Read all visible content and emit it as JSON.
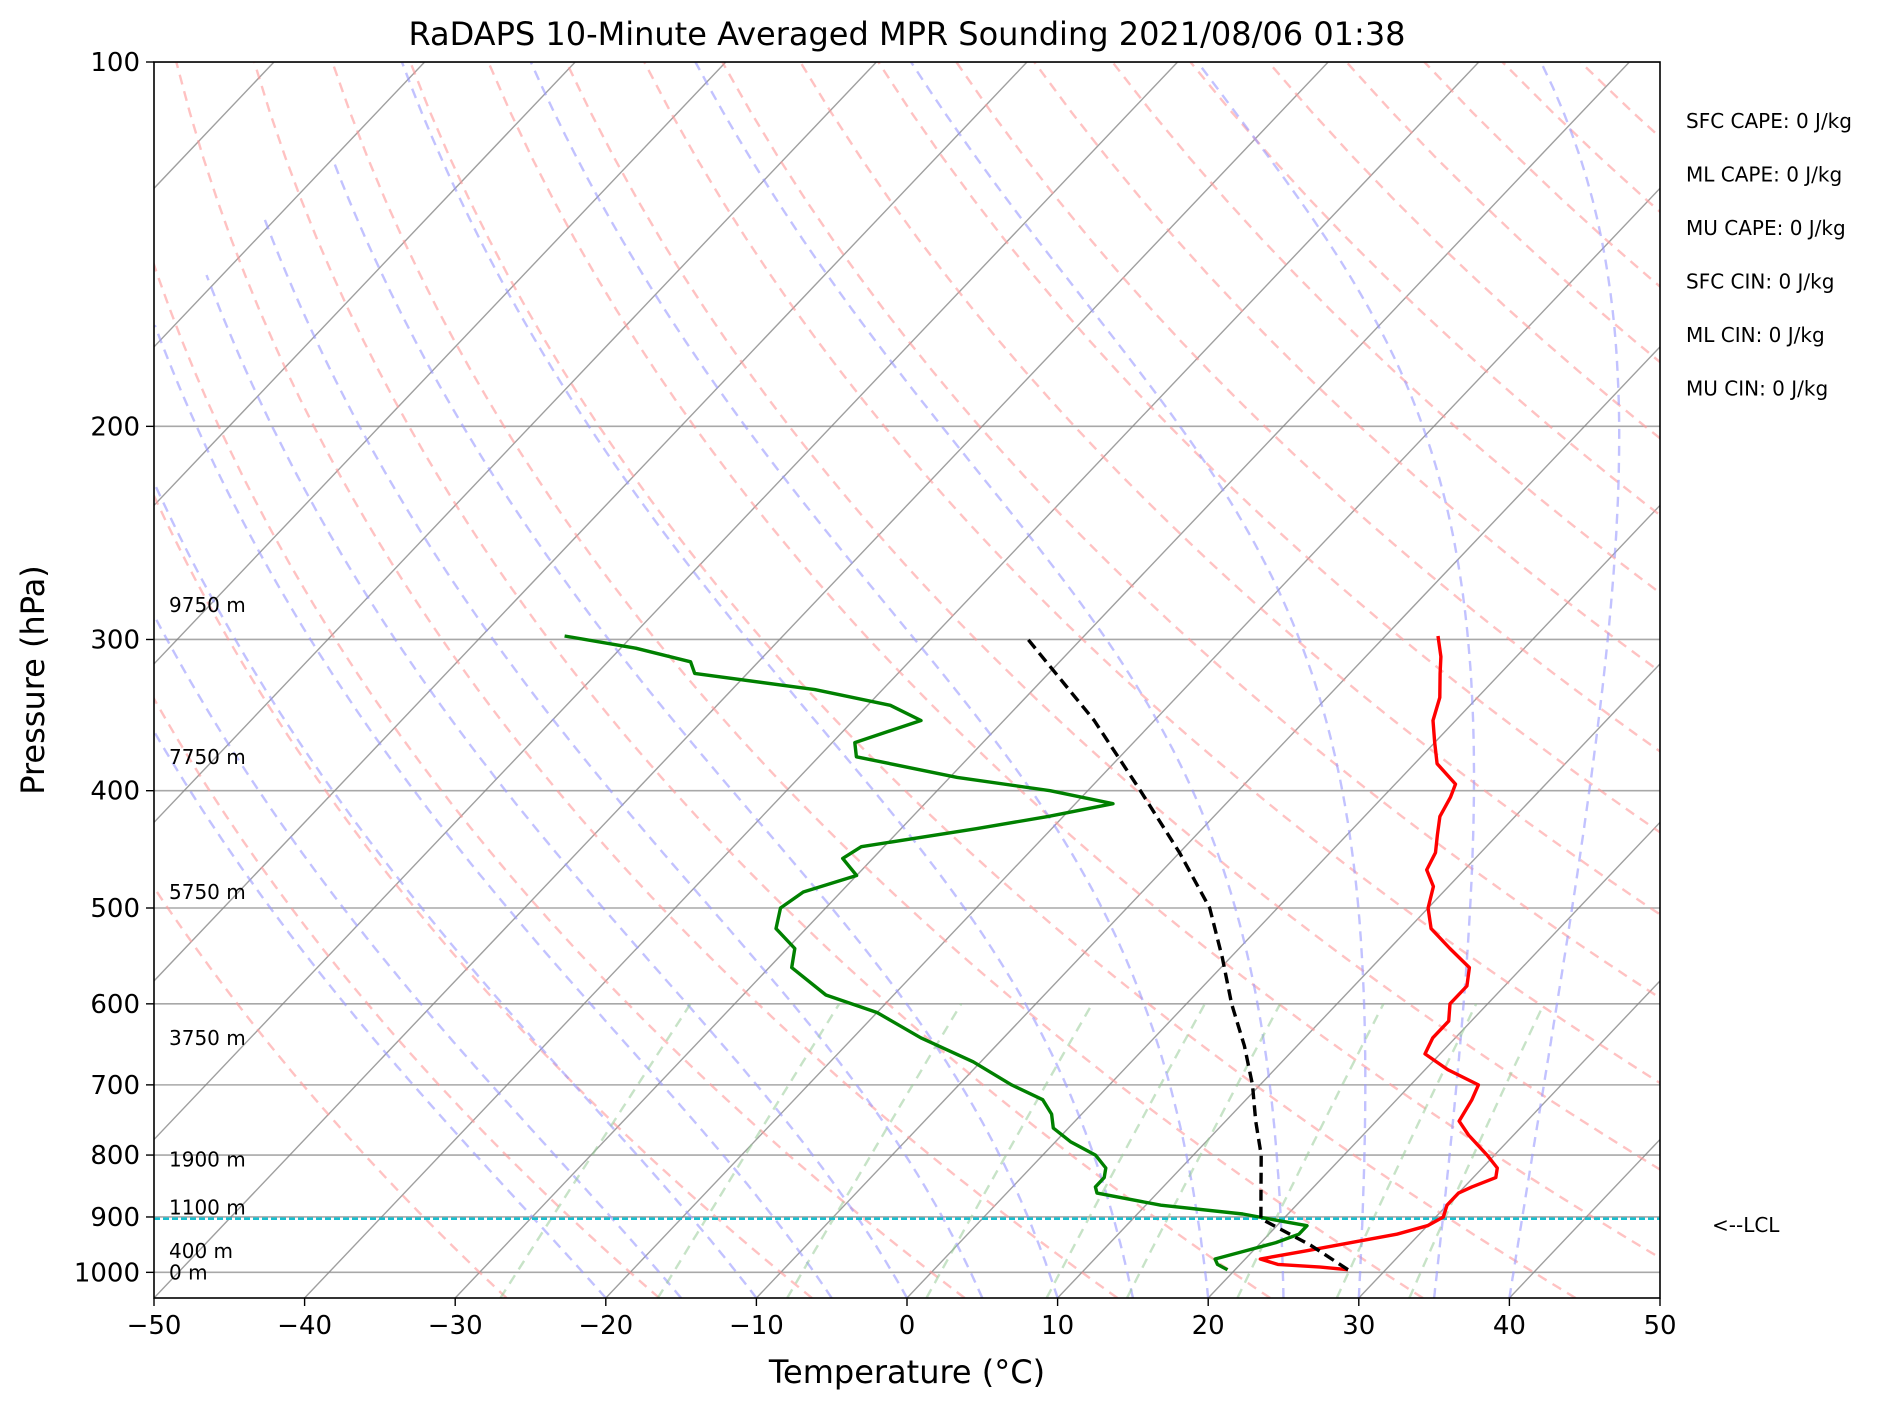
{
  "chart_data": {
    "type": "line",
    "subtype": "skew-t log-p sounding",
    "title": "RaDAPS 10-Minute Averaged MPR Sounding 2021/08/06 01:38",
    "xlabel": "Temperature (°C)",
    "ylabel": "Pressure (hPa)",
    "xlim": [
      -50,
      50
    ],
    "ylim": [
      1050,
      100
    ],
    "y_scale": "log",
    "grid": true,
    "x_ticks": [
      "−50",
      "−40",
      "−30",
      "−20",
      "−10",
      "0",
      "10",
      "20",
      "30",
      "40",
      "50"
    ],
    "y_ticks": [
      "100",
      "200",
      "300",
      "400",
      "500",
      "600",
      "700",
      "800",
      "900",
      "1000"
    ],
    "y_tick_values": [
      100,
      200,
      300,
      400,
      500,
      600,
      700,
      800,
      900,
      1000
    ],
    "colors": {
      "temperature": "#ff0000",
      "dewpoint": "#008000",
      "parcel": "#000000",
      "lcl": "#17becf",
      "dry_adiabats": "#ff9999",
      "moist_adiabats": "#9999ff",
      "mixing_ratio": "#99cc99",
      "isotherms": "#808080"
    },
    "series": [
      {
        "role": "temperature",
        "points": [
          {
            "p": 995,
            "t": 27.5
          },
          {
            "p": 990,
            "t": 25.5
          },
          {
            "p": 985,
            "t": 22.5
          },
          {
            "p": 975,
            "t": 21.0
          },
          {
            "p": 960,
            "t": 23.5
          },
          {
            "p": 945,
            "t": 26.0
          },
          {
            "p": 930,
            "t": 28.5
          },
          {
            "p": 915,
            "t": 30.0
          },
          {
            "p": 900,
            "t": 30.5
          },
          {
            "p": 880,
            "t": 30.0
          },
          {
            "p": 860,
            "t": 30.0
          },
          {
            "p": 850,
            "t": 30.5
          },
          {
            "p": 835,
            "t": 31.5
          },
          {
            "p": 820,
            "t": 31.0
          },
          {
            "p": 800,
            "t": 29.5
          },
          {
            "p": 770,
            "t": 27.0
          },
          {
            "p": 750,
            "t": 25.5
          },
          {
            "p": 720,
            "t": 25.0
          },
          {
            "p": 700,
            "t": 24.5
          },
          {
            "p": 680,
            "t": 21.5
          },
          {
            "p": 660,
            "t": 19.0
          },
          {
            "p": 640,
            "t": 18.5
          },
          {
            "p": 620,
            "t": 18.5
          },
          {
            "p": 600,
            "t": 17.5
          },
          {
            "p": 580,
            "t": 17.5
          },
          {
            "p": 560,
            "t": 16.5
          },
          {
            "p": 540,
            "t": 14.0
          },
          {
            "p": 520,
            "t": 11.5
          },
          {
            "p": 500,
            "t": 10.0
          },
          {
            "p": 480,
            "t": 9.0
          },
          {
            "p": 465,
            "t": 7.5
          },
          {
            "p": 450,
            "t": 7.0
          },
          {
            "p": 435,
            "t": 6.0
          },
          {
            "p": 420,
            "t": 5.0
          },
          {
            "p": 405,
            "t": 4.5
          },
          {
            "p": 395,
            "t": 4.0
          },
          {
            "p": 380,
            "t": 1.5
          },
          {
            "p": 365,
            "t": 0.0
          },
          {
            "p": 350,
            "t": -1.5
          },
          {
            "p": 335,
            "t": -2.5
          },
          {
            "p": 320,
            "t": -4.0
          },
          {
            "p": 310,
            "t": -5.0
          },
          {
            "p": 298,
            "t": -6.5
          }
        ]
      },
      {
        "role": "dewpoint",
        "points": [
          {
            "p": 995,
            "t": 19.5
          },
          {
            "p": 990,
            "t": 19.0
          },
          {
            "p": 985,
            "t": 18.5
          },
          {
            "p": 975,
            "t": 18.0
          },
          {
            "p": 960,
            "t": 19.5
          },
          {
            "p": 945,
            "t": 21.0
          },
          {
            "p": 930,
            "t": 22.0
          },
          {
            "p": 915,
            "t": 22.0
          },
          {
            "p": 905,
            "t": 19.5
          },
          {
            "p": 895,
            "t": 17.0
          },
          {
            "p": 880,
            "t": 11.0
          },
          {
            "p": 860,
            "t": 6.0
          },
          {
            "p": 850,
            "t": 5.5
          },
          {
            "p": 835,
            "t": 5.5
          },
          {
            "p": 820,
            "t": 5.0
          },
          {
            "p": 800,
            "t": 3.5
          },
          {
            "p": 780,
            "t": 1.0
          },
          {
            "p": 760,
            "t": -1.0
          },
          {
            "p": 740,
            "t": -2.0
          },
          {
            "p": 720,
            "t": -3.5
          },
          {
            "p": 700,
            "t": -6.5
          },
          {
            "p": 670,
            "t": -10.5
          },
          {
            "p": 640,
            "t": -15.5
          },
          {
            "p": 610,
            "t": -20.0
          },
          {
            "p": 590,
            "t": -24.5
          },
          {
            "p": 560,
            "t": -28.5
          },
          {
            "p": 540,
            "t": -29.5
          },
          {
            "p": 520,
            "t": -32.0
          },
          {
            "p": 500,
            "t": -33.0
          },
          {
            "p": 485,
            "t": -32.5
          },
          {
            "p": 470,
            "t": -30.0
          },
          {
            "p": 455,
            "t": -32.0
          },
          {
            "p": 445,
            "t": -31.5
          },
          {
            "p": 430,
            "t": -25.0
          },
          {
            "p": 420,
            "t": -21.0
          },
          {
            "p": 410,
            "t": -17.5
          },
          {
            "p": 400,
            "t": -22.5
          },
          {
            "p": 390,
            "t": -29.5
          },
          {
            "p": 375,
            "t": -37.5
          },
          {
            "p": 365,
            "t": -38.5
          },
          {
            "p": 350,
            "t": -35.5
          },
          {
            "p": 340,
            "t": -38.5
          },
          {
            "p": 330,
            "t": -44.5
          },
          {
            "p": 320,
            "t": -53.5
          },
          {
            "p": 313,
            "t": -54.5
          },
          {
            "p": 305,
            "t": -59.0
          },
          {
            "p": 298,
            "t": -64.5
          }
        ]
      },
      {
        "role": "parcel",
        "points": [
          {
            "p": 995,
            "t": 27.5
          },
          {
            "p": 950,
            "t": 23.5
          },
          {
            "p": 903,
            "t": 18.5
          },
          {
            "p": 850,
            "t": 16.5
          },
          {
            "p": 800,
            "t": 14.5
          },
          {
            "p": 750,
            "t": 12.0
          },
          {
            "p": 700,
            "t": 9.5
          },
          {
            "p": 650,
            "t": 6.5
          },
          {
            "p": 600,
            "t": 3.0
          },
          {
            "p": 550,
            "t": -0.5
          },
          {
            "p": 500,
            "t": -4.5
          },
          {
            "p": 450,
            "t": -10.0
          },
          {
            "p": 400,
            "t": -16.5
          },
          {
            "p": 350,
            "t": -24.0
          },
          {
            "p": 300,
            "t": -33.5
          }
        ]
      }
    ],
    "lcl": {
      "p": 903,
      "label": "<--LCL"
    },
    "heights": [
      {
        "label": "0 m",
        "p": 1000
      },
      {
        "label": "400 m",
        "p": 960
      },
      {
        "label": "1100 m",
        "p": 884
      },
      {
        "label": "1900 m",
        "p": 807
      },
      {
        "label": "3750 m",
        "p": 640
      },
      {
        "label": "5750 m",
        "p": 485
      },
      {
        "label": "7750 m",
        "p": 375
      },
      {
        "label": "9750 m",
        "p": 281
      }
    ],
    "indices": [
      "SFC CAPE: 0 J/kg",
      "ML CAPE: 0 J/kg",
      "MU CAPE: 0 J/kg",
      "SFC CIN: 0 J/kg",
      "ML CIN: 0 J/kg",
      "MU CIN: 0 J/kg"
    ]
  }
}
